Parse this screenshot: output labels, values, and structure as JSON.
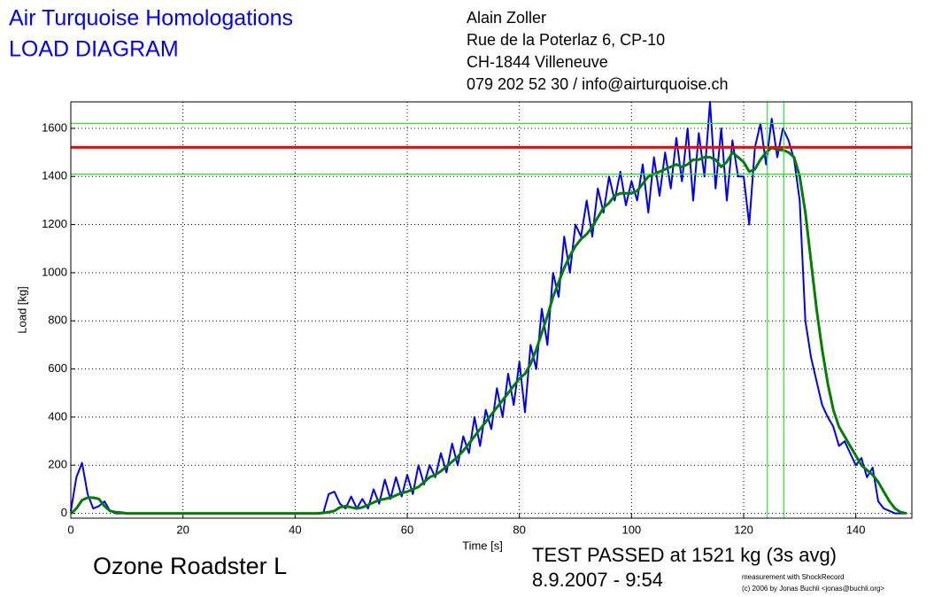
{
  "chart_data": {
    "type": "line",
    "title": "Air Turquoise Homologations",
    "subtitle": "LOAD DIAGRAM",
    "address": [
      "Alain Zoller",
      "Rue de la Poterlaz 6, CP-10",
      "CH-1844 Villeneuve",
      "079 202 52 30 / info@airturquoise.ch"
    ],
    "xlabel": "Time [s]",
    "ylabel": "Load [kg]",
    "glider": "Ozone Roadster L",
    "result": "TEST PASSED at 1521 kg (3s avg)",
    "date": "8.9.2007 - 9:54",
    "credit": [
      "measurement with ShockRecord",
      "(c) 2006 by Jonas Buchli <jonas@buchli.org>"
    ],
    "xlim": [
      0,
      150
    ],
    "ylim": [
      -20,
      1710
    ],
    "xticks": [
      0,
      20,
      40,
      60,
      80,
      100,
      120,
      140
    ],
    "yticks": [
      0,
      200,
      400,
      600,
      800,
      1000,
      1200,
      1400,
      1600
    ],
    "grid": true,
    "x": [
      0,
      1,
      2,
      3,
      4,
      5,
      6,
      7,
      8,
      9,
      10,
      20,
      30,
      40,
      44,
      45,
      46,
      47,
      48,
      49,
      50,
      51,
      52,
      53,
      54,
      55,
      56,
      57,
      58,
      59,
      60,
      61,
      62,
      63,
      64,
      65,
      66,
      67,
      68,
      69,
      70,
      71,
      72,
      73,
      74,
      75,
      76,
      77,
      78,
      79,
      80,
      81,
      82,
      83,
      84,
      85,
      86,
      87,
      88,
      89,
      90,
      91,
      92,
      93,
      94,
      95,
      96,
      97,
      98,
      99,
      100,
      101,
      102,
      103,
      104,
      105,
      106,
      107,
      108,
      109,
      110,
      111,
      112,
      113,
      114,
      115,
      116,
      117,
      118,
      119,
      120,
      121,
      122,
      123,
      124,
      125,
      126,
      127,
      128,
      129,
      130,
      131,
      132,
      133,
      134,
      135,
      136,
      137,
      138,
      139,
      140,
      141,
      142,
      143,
      144,
      145,
      146,
      147,
      148,
      149
    ],
    "series": [
      {
        "color": "#0000ff",
        "values": [
          10,
          150,
          210,
          80,
          20,
          30,
          50,
          10,
          0,
          0,
          0,
          0,
          0,
          0,
          0,
          0,
          80,
          90,
          40,
          20,
          70,
          20,
          60,
          20,
          100,
          40,
          140,
          60,
          150,
          70,
          160,
          80,
          200,
          120,
          200,
          150,
          250,
          170,
          290,
          200,
          320,
          250,
          400,
          280,
          430,
          350,
          520,
          400,
          580,
          450,
          630,
          420,
          700,
          600,
          850,
          700,
          1000,
          900,
          1150,
          1000,
          1200,
          1150,
          1300,
          1150,
          1350,
          1250,
          1400,
          1300,
          1420,
          1280,
          1380,
          1300,
          1450,
          1250,
          1480,
          1320,
          1500,
          1350,
          1560,
          1380,
          1600,
          1300,
          1580,
          1400,
          1710,
          1350,
          1600,
          1300,
          1550,
          1400,
          1400,
          1200,
          1520,
          1620,
          1450,
          1640,
          1480,
          1600,
          1550,
          1470,
          1300,
          800,
          650,
          550,
          450,
          400,
          360,
          280,
          300,
          250,
          200,
          230,
          150,
          190,
          50,
          20,
          10,
          0,
          0,
          0
        ]
      },
      {
        "color": "#008000",
        "values": [
          0,
          20,
          55,
          65,
          65,
          60,
          30,
          10,
          5,
          3,
          0,
          0,
          0,
          0,
          0,
          2,
          5,
          10,
          25,
          30,
          25,
          20,
          25,
          35,
          45,
          55,
          60,
          65,
          75,
          85,
          90,
          100,
          110,
          130,
          150,
          160,
          175,
          195,
          215,
          235,
          260,
          290,
          320,
          350,
          380,
          410,
          440,
          470,
          500,
          530,
          560,
          580,
          620,
          680,
          750,
          820,
          900,
          960,
          1020,
          1070,
          1110,
          1140,
          1160,
          1190,
          1230,
          1270,
          1290,
          1320,
          1330,
          1330,
          1330,
          1340,
          1370,
          1400,
          1410,
          1420,
          1430,
          1440,
          1450,
          1440,
          1450,
          1470,
          1470,
          1480,
          1480,
          1470,
          1440,
          1460,
          1500,
          1480,
          1460,
          1420,
          1430,
          1470,
          1500,
          1520,
          1510,
          1510,
          1500,
          1480,
          1400,
          1250,
          1050,
          850,
          680,
          540,
          430,
          360,
          320,
          280,
          240,
          200,
          180,
          160,
          130,
          90,
          50,
          20,
          5,
          0
        ]
      }
    ],
    "hlines": [
      {
        "value": 1620,
        "color": "#00ff00"
      },
      {
        "value": 1410,
        "color": "#00ff00"
      },
      {
        "value": 1521,
        "color": "#ff0000"
      }
    ],
    "vlines": [
      {
        "value": 124.2,
        "color": "#00ff00"
      },
      {
        "value": 127.2,
        "color": "#00ff00"
      }
    ]
  }
}
